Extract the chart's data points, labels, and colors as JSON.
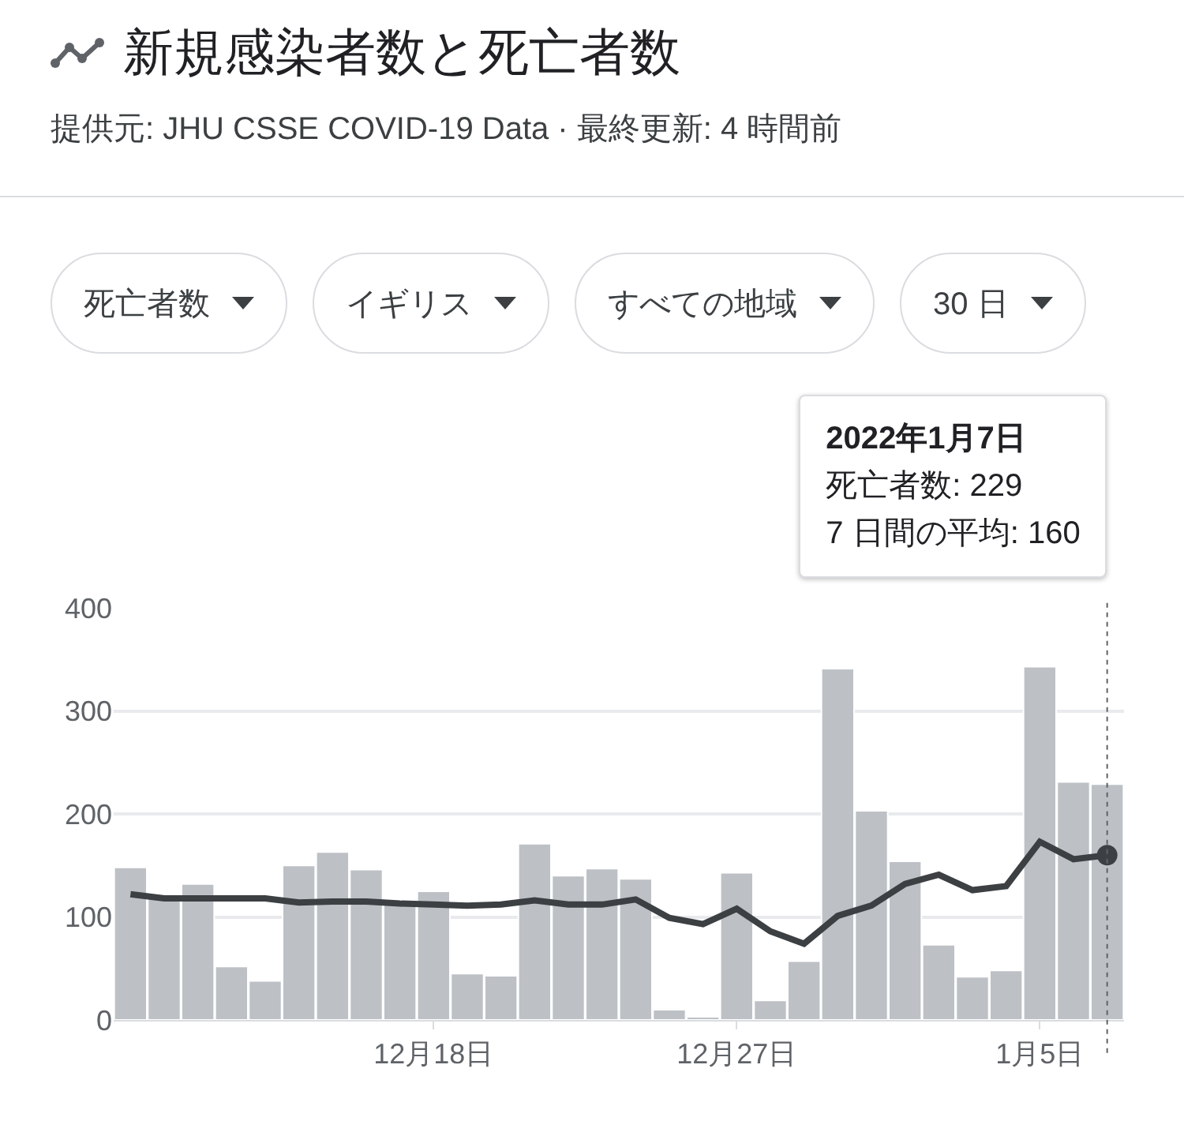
{
  "chart_data": {
    "type": "bar",
    "title": "新規感染者数と死亡者数",
    "subtitle": "提供元: JHU CSSE COVID-19 Data · 最終更新: 4 時間前",
    "x": [
      "2021-12-09",
      "2021-12-10",
      "2021-12-11",
      "2021-12-12",
      "2021-12-13",
      "2021-12-14",
      "2021-12-15",
      "2021-12-16",
      "2021-12-17",
      "2021-12-18",
      "2021-12-19",
      "2021-12-20",
      "2021-12-21",
      "2021-12-22",
      "2021-12-23",
      "2021-12-24",
      "2021-12-25",
      "2021-12-26",
      "2021-12-27",
      "2021-12-28",
      "2021-12-29",
      "2021-12-30",
      "2021-12-31",
      "2022-01-01",
      "2022-01-02",
      "2022-01-03",
      "2022-01-04",
      "2022-01-05",
      "2022-01-06",
      "2022-01-07"
    ],
    "series": [
      {
        "color": "#bdc1c6",
        "values": [
          148,
          120,
          132,
          52,
          38,
          150,
          163,
          146,
          114,
          125,
          45,
          43,
          171,
          140,
          147,
          137,
          10,
          3,
          143,
          19,
          57,
          341,
          203,
          154,
          73,
          42,
          48,
          343,
          231,
          229
        ]
      },
      {
        "type": "line",
        "color": "#3c4043",
        "values": [
          122,
          118,
          118,
          118,
          118,
          114,
          115,
          115,
          113,
          112,
          111,
          112,
          116,
          112,
          112,
          117,
          99,
          93,
          108,
          86,
          74,
          101,
          111,
          132,
          141,
          126,
          130,
          173,
          156,
          160
        ]
      }
    ],
    "xlim": [
      "2021-12-08T12:00",
      "2022-01-07T12:00"
    ],
    "xticks": [
      {
        "value": "2021-12-18",
        "label": "12月18日"
      },
      {
        "value": "2021-12-27",
        "label": "12月27日"
      },
      {
        "value": "2022-01-05",
        "label": "1月5日"
      }
    ],
    "ylim": [
      0,
      400
    ],
    "yticks": [
      0,
      100,
      200,
      300,
      400
    ],
    "grid": "y",
    "legend": false,
    "marker": "none",
    "line_style": "solid",
    "ref_lines": [
      {
        "axis": "x",
        "value": "2022-01-07",
        "line_style": "dotted",
        "color": "#5f6368"
      }
    ],
    "annotations": [
      "死亡者数",
      "イギリス",
      "すべての地域",
      "30 日",
      "2022年1月7日",
      "死亡者数: 229",
      "7 日間の平均: 160"
    ]
  }
}
